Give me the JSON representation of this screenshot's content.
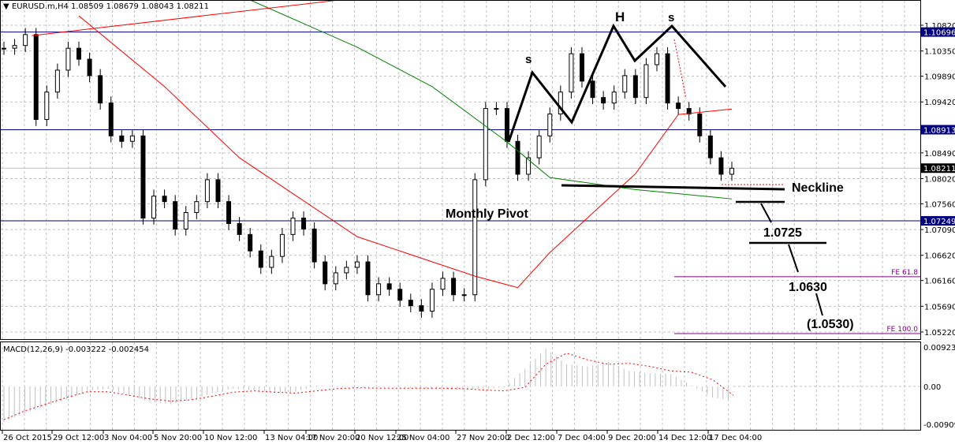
{
  "header": {
    "symbol": "EURUSD.m,H4",
    "open": "1.08509",
    "high": "1.08679",
    "low": "1.08043",
    "close": "1.08211"
  },
  "chart_data": [
    {
      "type": "candlestick",
      "symbol": "EURUSD.m",
      "timeframe": "H4",
      "ylim": [
        1.0515,
        1.113
      ],
      "y_ticks": [
        "1.10820",
        "1.10350",
        "1.09890",
        "1.09420",
        "1.08490",
        "1.08020",
        "1.07560",
        "1.07090",
        "1.06620",
        "1.06160",
        "1.05690",
        "1.05220"
      ],
      "x_ticks": [
        "26 Oct 2015",
        "29 Oct 12:00",
        "3 Nov 04:00",
        "5 Nov 20:00",
        "10 Nov 12:00",
        "13 Nov 04:00",
        "17 Nov 20:00",
        "20 Nov 12:00",
        "25 Nov 04:00",
        "27 Nov 20:00",
        "2 Dec 12:00",
        "7 Dec 04:00",
        "9 Dec 20:00",
        "14 Dec 12:00",
        "17 Dec 04:00"
      ],
      "grid": true,
      "closes": [
        1.104,
        1.1045,
        1.1065,
        1.091,
        1.096,
        1.1,
        1.104,
        1.102,
        1.099,
        1.094,
        1.088,
        1.087,
        1.088,
        1.073,
        1.077,
        1.076,
        1.071,
        1.074,
        1.076,
        1.08,
        1.076,
        1.072,
        1.07,
        1.067,
        1.064,
        1.066,
        1.07,
        1.073,
        1.071,
        1.065,
        1.061,
        1.063,
        1.064,
        1.065,
        1.059,
        1.061,
        1.06,
        1.058,
        1.057,
        1.056,
        1.06,
        1.062,
        1.059,
        1.059,
        1.08,
        1.093,
        1.093,
        1.087,
        1.081,
        1.084,
        1.088,
        1.092,
        1.096,
        1.103,
        1.098,
        1.095,
        1.094,
        1.096,
        1.099,
        1.095,
        1.101,
        1.103,
        1.094,
        1.093,
        1.092,
        1.088,
        1.084,
        1.081,
        1.0821
      ],
      "ma_red": [
        [
          7,
          1.1099
        ],
        [
          15,
          1.097
        ],
        [
          22,
          1.084
        ],
        [
          33,
          1.0696
        ],
        [
          44,
          1.0624
        ],
        [
          48,
          1.0603
        ],
        [
          51,
          1.0667
        ],
        [
          59,
          1.0811
        ],
        [
          63,
          1.0919
        ],
        [
          68,
          1.0929
        ]
      ],
      "ma_green": [
        [
          23,
          1.1128
        ],
        [
          33,
          1.1042
        ],
        [
          40,
          1.097
        ],
        [
          47,
          1.0869
        ],
        [
          51,
          1.0804
        ],
        [
          59,
          1.0782
        ],
        [
          68,
          1.0765
        ]
      ],
      "trendline": [
        [
          2.6,
          1.1063
        ],
        [
          31.3,
          1.1128
        ]
      ],
      "levels": [
        {
          "price": "1.10696",
          "color": "#000080"
        },
        {
          "price": "1.08913",
          "color": "#000080"
        },
        {
          "price": "1.07249",
          "color": "#000080"
        },
        {
          "price": "1.08211",
          "color": "#000000",
          "current": true
        }
      ],
      "fibo": [
        {
          "label": "FE 61.8",
          "price": 1.0623
        },
        {
          "label": "FE 100.0",
          "price": 1.0519
        }
      ],
      "annotations": {
        "left_shoulder": "s",
        "head": "H",
        "right_shoulder": "s",
        "neckline": "Neckline",
        "pivot": "Monthly Pivot",
        "target1": "1.0725",
        "target2": "1.0630",
        "target3": "(1.0530)"
      },
      "colors": {
        "ma_fast": "#ff0000",
        "ma_slow": "#008000",
        "levels": "#000080",
        "fibo": "#800080"
      }
    },
    {
      "type": "bar+line",
      "title": "MACD(12,26,9) -0.003222 -0.002454",
      "y_ticks": [
        "0.009237",
        "0.00",
        "-0.009095"
      ],
      "ylim": [
        -0.009095,
        0.009237
      ],
      "histogram": [
        -0.008,
        -0.006,
        -0.0045,
        -0.003,
        -0.001,
        -0.0005,
        -0.002,
        -0.0035,
        -0.004,
        -0.003,
        -0.0015,
        -0.0005,
        -0.0008,
        -0.0015,
        -0.0012,
        0.0002,
        -0.0002,
        -0.0003,
        -0.0002,
        -0.0002,
        -0.0005,
        -0.0006,
        -0.0008,
        -0.0006,
        -0.0002,
        0.004,
        0.0085,
        0.005,
        0.0045,
        0.0055,
        0.0035,
        0.003,
        0.0028,
        0.0002,
        -0.0025,
        -0.0032
      ],
      "signal": [
        -0.0075,
        -0.0055,
        -0.004,
        -0.0025,
        -0.0012,
        -0.0012,
        -0.002,
        -0.0028,
        -0.0033,
        -0.003,
        -0.0022,
        -0.0013,
        -0.001,
        -0.0013,
        -0.0015,
        -0.001,
        -0.0005,
        -0.0003,
        -0.0004,
        -0.0004,
        -0.0004,
        -0.0004,
        -0.0005,
        -0.0008,
        -0.001,
        -0.0002,
        0.005,
        0.0075,
        0.006,
        0.005,
        0.0052,
        0.0045,
        0.0035,
        0.0032,
        0.0015,
        -0.002
      ]
    }
  ]
}
